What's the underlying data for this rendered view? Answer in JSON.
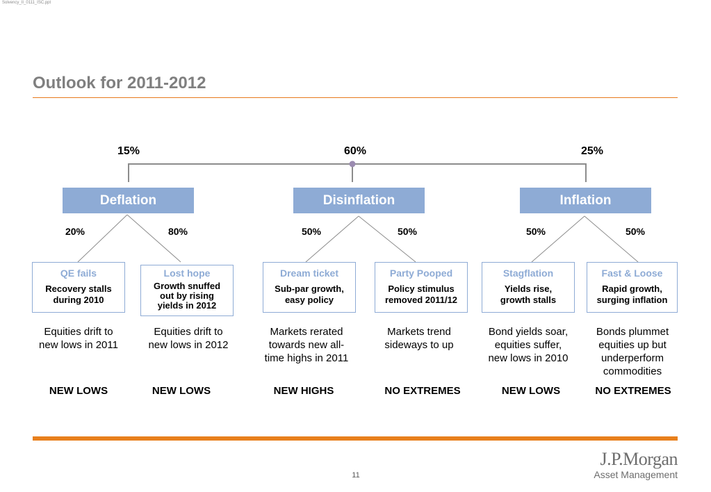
{
  "file_tag": "Solvency_II_0111_ISC.ppt",
  "title": "Outlook for 2011-2012",
  "top_probs": [
    "15%",
    "60%",
    "25%"
  ],
  "categories": [
    {
      "label": "Deflation",
      "sub_probs": [
        "20%",
        "80%"
      ]
    },
    {
      "label": "Disinflation",
      "sub_probs": [
        "50%",
        "50%"
      ]
    },
    {
      "label": "Inflation",
      "sub_probs": [
        "50%",
        "50%"
      ]
    }
  ],
  "scenarios": [
    {
      "title": "QE fails",
      "desc_lines": [
        "Recovery stalls",
        "during 2010"
      ],
      "outcome_lines": [
        "Equities drift to",
        "new  lows in 2011"
      ],
      "verdict": "NEW LOWS"
    },
    {
      "title": "Lost hope",
      "desc_lines": [
        "Growth snuffed",
        "out by rising",
        "yields  in 2012"
      ],
      "outcome_lines": [
        "Equities drift to",
        "new  lows in 2012"
      ],
      "verdict": "NEW LOWS"
    },
    {
      "title": "Dream ticket",
      "desc_lines": [
        "Sub-par growth,",
        "easy policy"
      ],
      "outcome_lines": [
        "Markets rerated",
        "towards new all-",
        "time highs in 2011"
      ],
      "verdict": "NEW HIGHS"
    },
    {
      "title": "Party Pooped",
      "desc_lines": [
        "Policy stimulus",
        "removed 2011/12"
      ],
      "outcome_lines": [
        "Markets trend",
        "sideways to up"
      ],
      "verdict": "NO EXTREMES"
    },
    {
      "title": "Stagflation",
      "desc_lines": [
        "Yields rise,",
        "growth stalls"
      ],
      "outcome_lines": [
        "Bond yields soar,",
        "equities suffer,",
        "new lows in 2010"
      ],
      "verdict": "NEW LOWS"
    },
    {
      "title": "Fast & Loose",
      "desc_lines": [
        "Rapid growth,",
        "surging inflation"
      ],
      "outcome_lines": [
        "Bonds plummet",
        "equities up but",
        "underperform",
        "commodities"
      ],
      "verdict": "NO EXTREMES"
    }
  ],
  "page_number": "11",
  "logo": {
    "main": "J.P.Morgan",
    "sub": "Asset Management"
  },
  "colors": {
    "accent_orange": "#e8801c",
    "box_blue": "#8eabd5",
    "title_gray": "#7f7f7f",
    "line_gray": "#8c8c8c",
    "node_purple": "#9b8bb0"
  }
}
